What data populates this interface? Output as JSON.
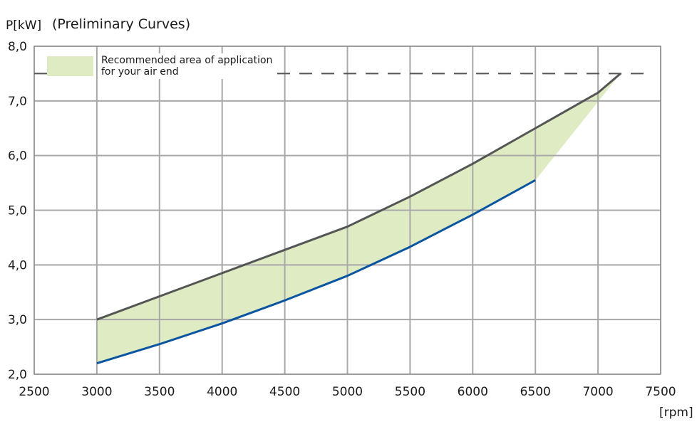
{
  "chart_data": {
    "type": "line",
    "title": "(Preliminary Curves)",
    "ylabel": "P[kW]",
    "xlabel": "[rpm]",
    "xlim": [
      2500,
      7500
    ],
    "ylim": [
      2.0,
      8.0
    ],
    "x_ticks": [
      "2500",
      "3000",
      "3500",
      "4000",
      "4500",
      "5000",
      "5500",
      "6000",
      "6500",
      "7000",
      "7500"
    ],
    "y_ticks": [
      "2,0",
      "3,0",
      "4,0",
      "5,0",
      "6,0",
      "7,0",
      "8,0"
    ],
    "grid": true,
    "legend": {
      "placement": "top-left",
      "line1": "Recommended area of application",
      "line2": "for  your air end"
    },
    "limit_line": {
      "y": 7.5,
      "style": "dashed",
      "color": "#555555"
    },
    "series": [
      {
        "color": "#555555",
        "x": [
          3000,
          4000,
          5000,
          5500,
          6000,
          6500,
          7000,
          7180
        ],
        "y": [
          3.0,
          3.85,
          4.7,
          5.25,
          5.85,
          6.5,
          7.15,
          7.5
        ]
      },
      {
        "color": "#0a55a0",
        "x": [
          3000,
          3500,
          4000,
          4500,
          5000,
          5500,
          6000,
          6500
        ],
        "y": [
          2.2,
          2.55,
          2.93,
          3.35,
          3.8,
          4.33,
          4.92,
          5.55
        ]
      }
    ],
    "fill_color": "#dfebc3"
  }
}
